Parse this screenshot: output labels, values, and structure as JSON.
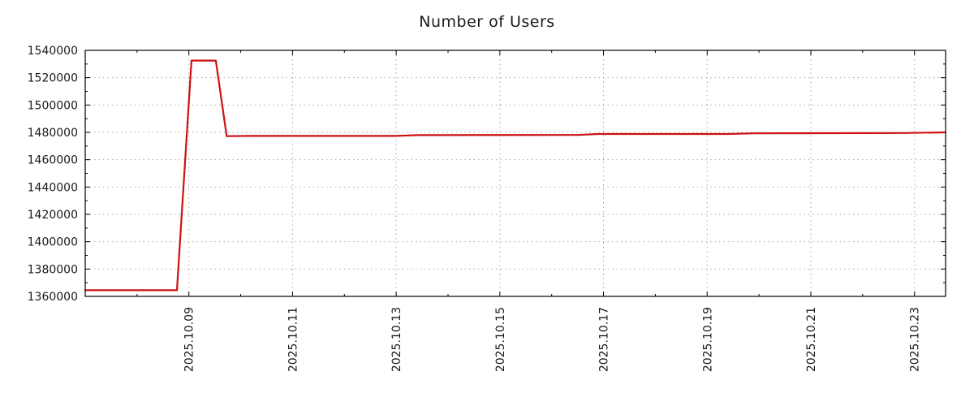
{
  "chart_data": {
    "type": "line",
    "title": "Number of Users",
    "xlabel": "",
    "ylabel": "",
    "xlim": [
      7.0,
      23.6
    ],
    "ylim": [
      1360000,
      1540000
    ],
    "grid": true,
    "legend": "none",
    "line_color": "#cc1111",
    "grid_color": "#a9a9a9",
    "axis_color": "#000000",
    "text_color": "#1a1a1a",
    "ytick_values": [
      1360000,
      1380000,
      1400000,
      1420000,
      1440000,
      1460000,
      1480000,
      1500000,
      1520000,
      1540000
    ],
    "ytick_labels": [
      "1360000",
      "1380000",
      "1400000",
      "1420000",
      "1440000",
      "1460000",
      "1480000",
      "1500000",
      "1520000",
      "1540000"
    ],
    "xtick_values": [
      9,
      11,
      13,
      15,
      17,
      19,
      21,
      23
    ],
    "xtick_labels": [
      "2025.10.09",
      "2025.10.11",
      "2025.10.13",
      "2025.10.15",
      "2025.10.17",
      "2025.10.19",
      "2025.10.21",
      "2025.10.23"
    ],
    "x_minor_step": 1,
    "y_minor_step": 10000,
    "series": [
      {
        "name": "Number of Users",
        "x": [
          7.0,
          8.77,
          9.05,
          9.52,
          9.73,
          10.2,
          13.0,
          13.4,
          16.5,
          16.9,
          19.4,
          19.9,
          22.8,
          23.6
        ],
        "y": [
          1364500,
          1364500,
          1532500,
          1532500,
          1477200,
          1477400,
          1477400,
          1478000,
          1478100,
          1478800,
          1478800,
          1479300,
          1479500,
          1480000
        ]
      }
    ]
  }
}
